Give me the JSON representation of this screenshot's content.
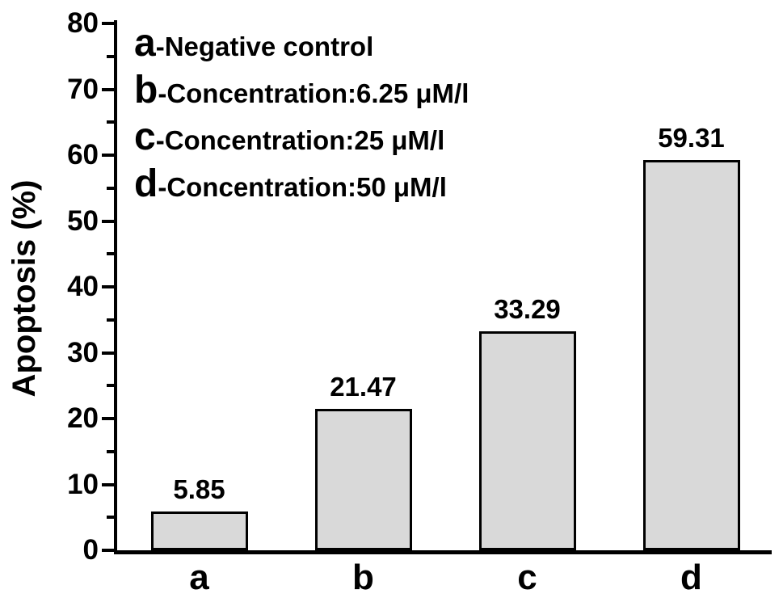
{
  "chart_data": {
    "type": "bar",
    "title": "",
    "xlabel": "",
    "ylabel": "Apoptosis (%)",
    "categories": [
      "a",
      "b",
      "c",
      "d"
    ],
    "values": [
      5.85,
      21.47,
      33.29,
      59.31
    ],
    "value_labels": [
      "5.85",
      "21.47",
      "33.29",
      "59.31"
    ],
    "ylim": [
      0,
      80
    ],
    "ytick_step": 10,
    "ytick_minor_step": 5,
    "ytick_labels": [
      "0",
      "10",
      "20",
      "30",
      "40",
      "50",
      "60",
      "70",
      "80"
    ],
    "grid": false,
    "legend_position": "upper-left",
    "legend": [
      {
        "key": "a",
        "label": "-Negative control"
      },
      {
        "key": "b",
        "label": "-Concentration:6.25 μM/l"
      },
      {
        "key": "c",
        "label": "-Concentration:25 μM/l"
      },
      {
        "key": "d",
        "label": "-Concentration:50 μM/l"
      }
    ],
    "colors": {
      "bar_fill": "#d9d9d9",
      "bar_border": "#000000",
      "axis": "#000000",
      "text": "#000000",
      "background": "#ffffff"
    }
  }
}
